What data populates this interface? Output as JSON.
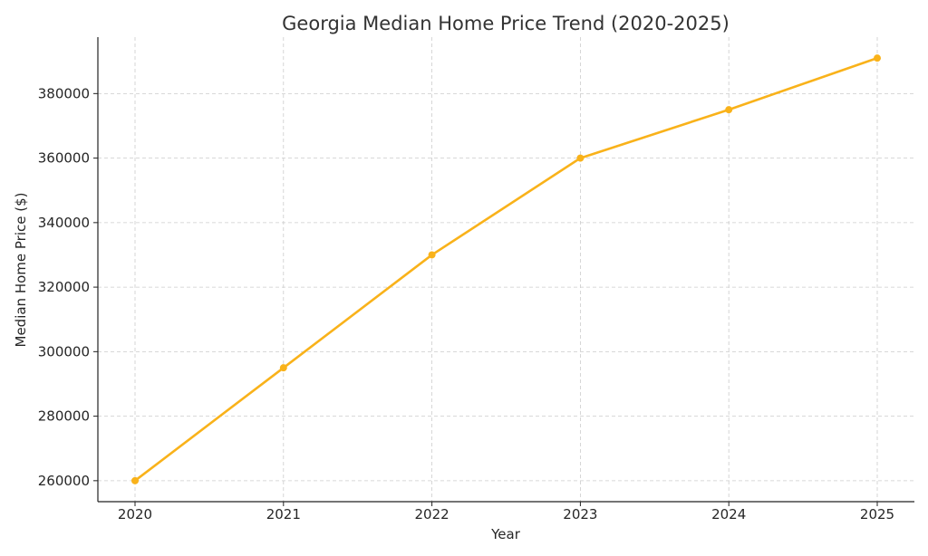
{
  "chart_data": {
    "type": "line",
    "title": "Georgia Median Home Price Trend (2020-2025)",
    "xlabel": "Year",
    "ylabel": "Median Home Price ($)",
    "categories": [
      "2020",
      "2021",
      "2022",
      "2023",
      "2024",
      "2025"
    ],
    "series": [
      {
        "values": [
          260000,
          295000,
          330000,
          360000,
          375000,
          391000
        ],
        "color": "#f9b21a"
      }
    ],
    "yticks": [
      260000,
      280000,
      300000,
      320000,
      340000,
      360000,
      380000
    ],
    "ylim": [
      253500,
      397500
    ],
    "grid": true,
    "marker": "circle"
  }
}
